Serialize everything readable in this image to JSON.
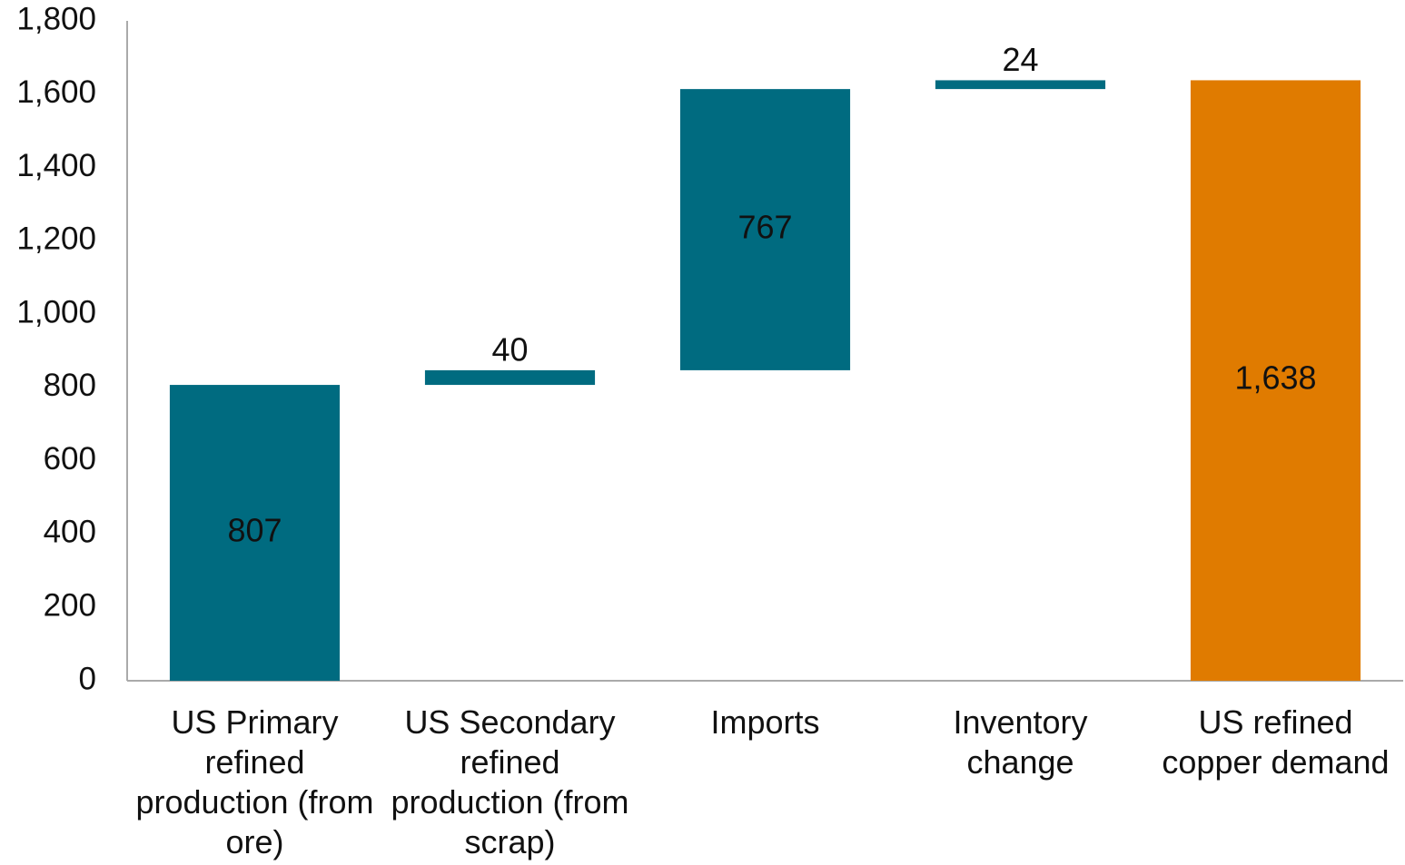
{
  "chart_data": {
    "type": "waterfall",
    "categories": [
      "US Primary refined production (from ore)",
      "US Secondary refined production (from scrap)",
      "Imports",
      "Inventory change",
      "US refined copper demand"
    ],
    "values": [
      807,
      40,
      767,
      24,
      1638
    ],
    "value_labels": [
      "807",
      "40",
      "767",
      "24",
      "1,638"
    ],
    "is_total": [
      false,
      false,
      false,
      false,
      true
    ],
    "colors": [
      "#006b80",
      "#006b80",
      "#006b80",
      "#006b80",
      "#e07b00"
    ],
    "ylim": [
      0,
      1800
    ],
    "yticks": [
      0,
      200,
      400,
      600,
      800,
      {
        "value": 1000,
        "label": "1,000"
      },
      {
        "value": 1200,
        "label": "1,200"
      },
      {
        "value": 1400,
        "label": "1,400"
      },
      {
        "value": 1600,
        "label": "1,600"
      },
      {
        "value": 1800,
        "label": "1,800"
      }
    ],
    "grid": false
  }
}
